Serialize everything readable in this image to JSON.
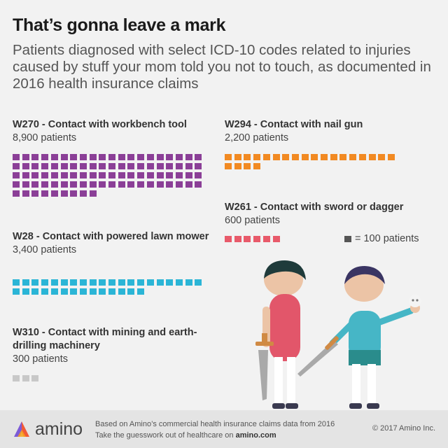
{
  "title": "That’s gonna leave a mark",
  "subtitle": "Patients diagnosed with select ICD-10 codes related to injuries caused by stuff your mom told you not to touch, as documented in 2016 health insurance claims",
  "legend": {
    "label": "= 100 patients"
  },
  "footer": {
    "brand": "amino",
    "source_line1": "Based on Amino’s commercial health insurance claims data from 2016",
    "source_line2_prefix": "Take the guesswork out of healthcare on ",
    "source_line2_link": "amino.com",
    "copyright": "© 2017 Amino Inc."
  },
  "colors": {
    "W270": "#8b3f97",
    "W294": "#f28a22",
    "W261": "#e85a6a",
    "W28": "#2bb5d6",
    "W310": "#c8c8c8",
    "legend": "#555555"
  },
  "chart_data": {
    "type": "waffle",
    "unit": 100,
    "unit_label": "= 100 patients",
    "title": "That’s gonna leave a mark",
    "series": [
      {
        "code": "W270",
        "label": "W270 - Contact with workbench tool",
        "count_label": "8,900 patients",
        "value": 8900
      },
      {
        "code": "W294",
        "label": "W294 - Contact with nail gun",
        "count_label": "2,200 patients",
        "value": 2200
      },
      {
        "code": "W261",
        "label": "W261 - Contact with sword or dagger",
        "count_label": "600 patients",
        "value": 600
      },
      {
        "code": "W28",
        "label": "W28 - Contact with powered lawn mower",
        "count_label": "3,400 patients",
        "value": 3400
      },
      {
        "code": "W310",
        "label": "W310 - Contact with mining and earth-drilling machinery",
        "count_label": "300 patients",
        "value": 300
      }
    ]
  }
}
